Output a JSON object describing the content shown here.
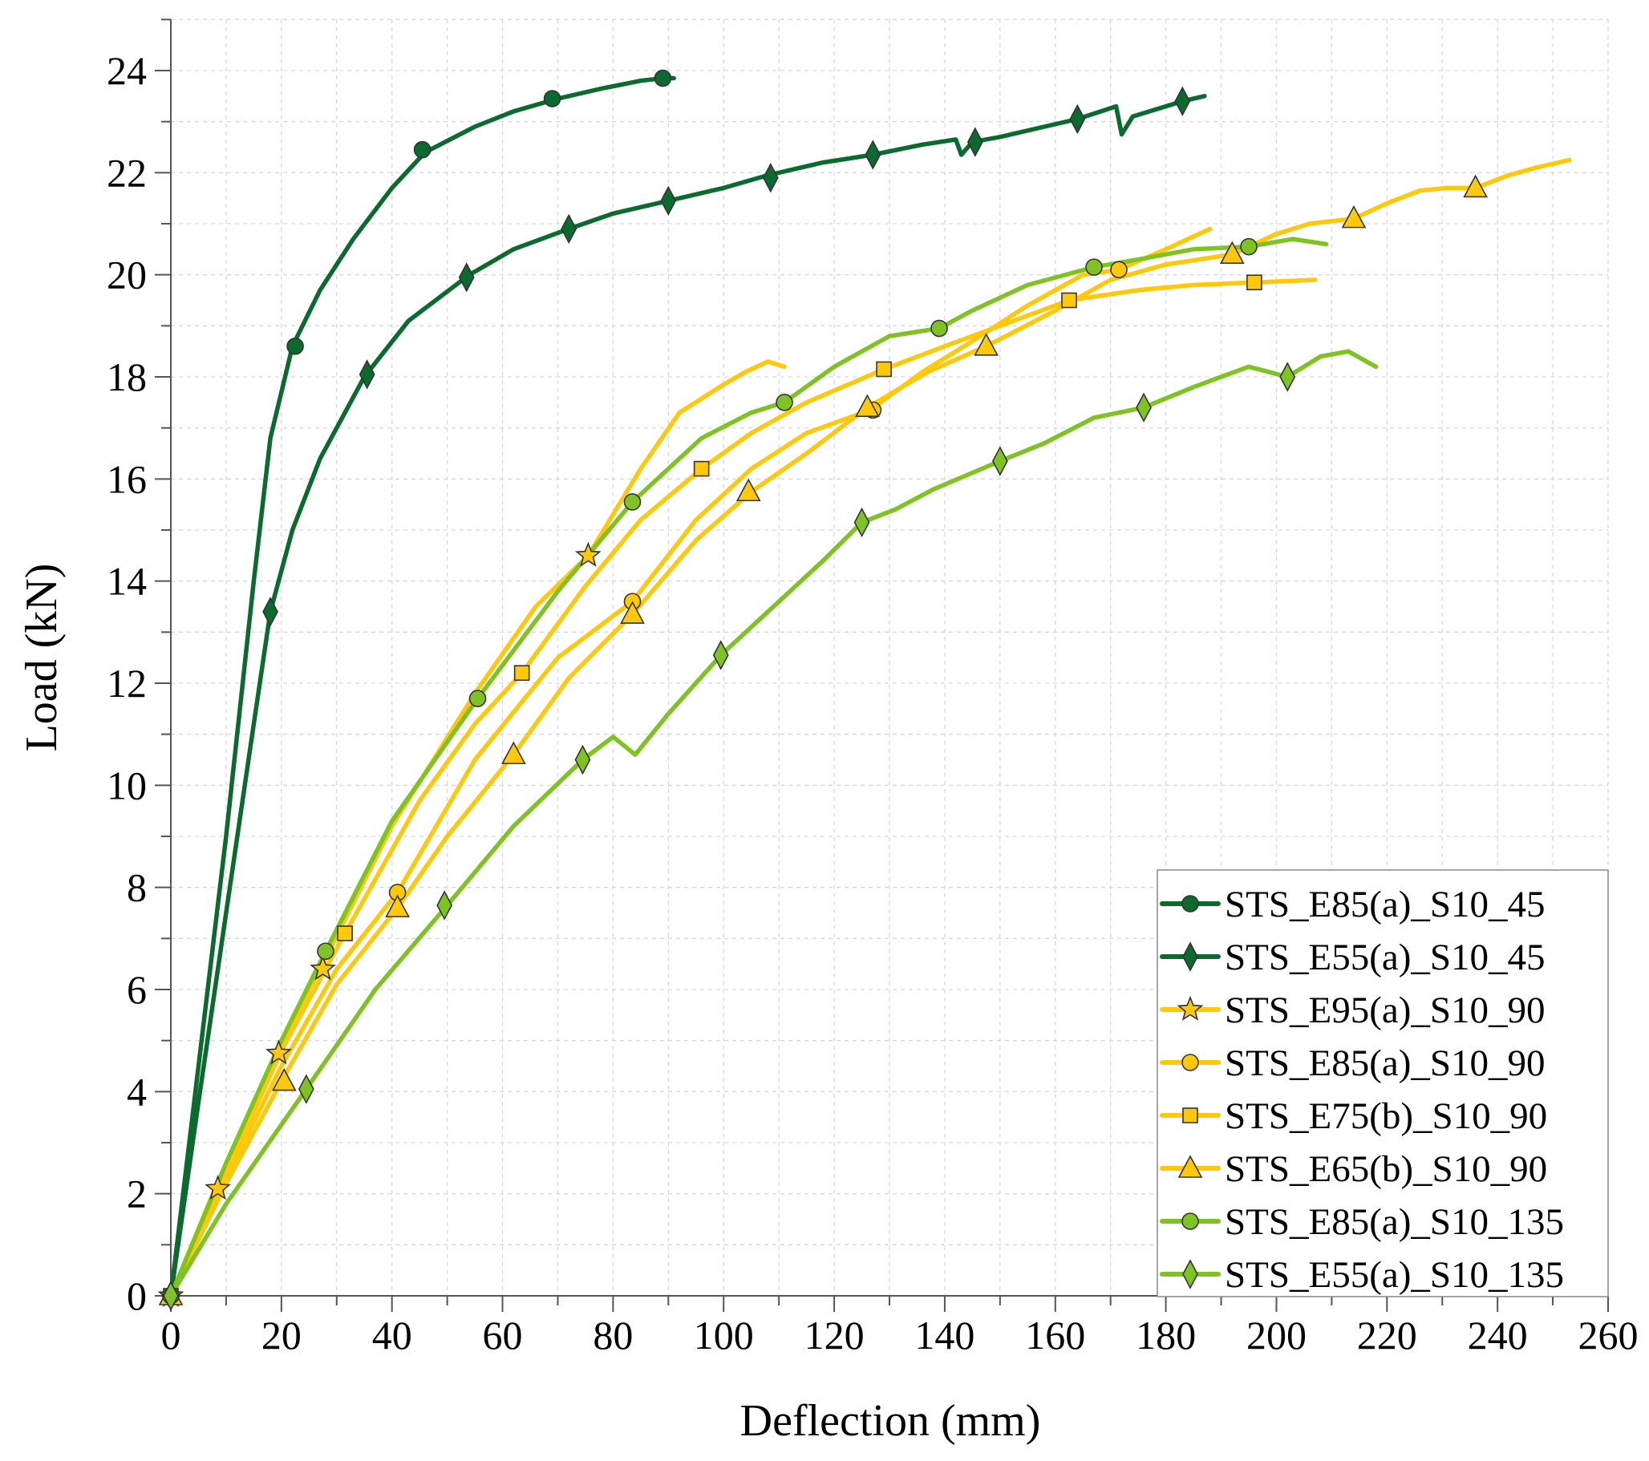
{
  "chart_data": {
    "type": "line",
    "title": "",
    "xlabel": "Deflection (mm)",
    "ylabel": "Load (kN)",
    "xlim": [
      0,
      260
    ],
    "ylim": [
      0,
      25
    ],
    "x_ticks": [
      "0",
      "20",
      "40",
      "60",
      "80",
      "100",
      "120",
      "140",
      "160",
      "180",
      "200",
      "220",
      "240",
      "260"
    ],
    "y_ticks": [
      "0",
      "2",
      "4",
      "6",
      "8",
      "10",
      "12",
      "14",
      "16",
      "18",
      "20",
      "22",
      "24"
    ],
    "grid": true,
    "legend_position": "bottom-right",
    "series": [
      {
        "name": "STS_E85(a)_S10_45",
        "color": "#0b6b2e",
        "marker": "circle",
        "points": [
          [
            0,
            0
          ],
          [
            5,
            4.5
          ],
          [
            10,
            9
          ],
          [
            15,
            14
          ],
          [
            18,
            16.8
          ],
          [
            22,
            18.6
          ],
          [
            27,
            19.7
          ],
          [
            33,
            20.7
          ],
          [
            40,
            21.7
          ],
          [
            46,
            22.4
          ],
          [
            55,
            22.9
          ],
          [
            62,
            23.2
          ],
          [
            70,
            23.45
          ],
          [
            78,
            23.65
          ],
          [
            85,
            23.8
          ],
          [
            89,
            23.85
          ],
          [
            91,
            23.85
          ]
        ],
        "markers": [
          [
            0,
            0
          ],
          [
            22.5,
            18.6
          ],
          [
            45.5,
            22.45
          ],
          [
            69,
            23.45
          ],
          [
            89,
            23.85
          ]
        ]
      },
      {
        "name": "STS_E55(a)_S10_45",
        "color": "#0b6b2e",
        "marker": "diamond",
        "points": [
          [
            0,
            0
          ],
          [
            5,
            3.8
          ],
          [
            10,
            7.5
          ],
          [
            15,
            11.2
          ],
          [
            18,
            13.4
          ],
          [
            22,
            15
          ],
          [
            27,
            16.4
          ],
          [
            35,
            18
          ],
          [
            43,
            19.1
          ],
          [
            54,
            20
          ],
          [
            62,
            20.5
          ],
          [
            72,
            20.9
          ],
          [
            80,
            21.2
          ],
          [
            90,
            21.45
          ],
          [
            100,
            21.7
          ],
          [
            108,
            21.95
          ],
          [
            118,
            22.2
          ],
          [
            127,
            22.35
          ],
          [
            136,
            22.55
          ],
          [
            142,
            22.65
          ],
          [
            143,
            22.35
          ],
          [
            145,
            22.6
          ],
          [
            150,
            22.7
          ],
          [
            158,
            22.9
          ],
          [
            164,
            23.05
          ],
          [
            171,
            23.3
          ],
          [
            172,
            22.75
          ],
          [
            174,
            23.1
          ],
          [
            180,
            23.3
          ],
          [
            183,
            23.4
          ],
          [
            187,
            23.5
          ]
        ],
        "markers": [
          [
            0,
            0
          ],
          [
            18,
            13.4
          ],
          [
            35.5,
            18.05
          ],
          [
            53.5,
            19.95
          ],
          [
            72,
            20.9
          ],
          [
            90,
            21.45
          ],
          [
            108.5,
            21.9
          ],
          [
            127,
            22.35
          ],
          [
            145.5,
            22.6
          ],
          [
            164,
            23.05
          ],
          [
            183,
            23.4
          ]
        ]
      },
      {
        "name": "STS_E95(a)_S10_90",
        "color": "#ffc90a",
        "marker": "star",
        "points": [
          [
            0,
            0
          ],
          [
            8,
            2.1
          ],
          [
            19,
            4.75
          ],
          [
            27,
            6.4
          ],
          [
            40,
            9.2
          ],
          [
            55,
            11.8
          ],
          [
            66,
            13.5
          ],
          [
            75.5,
            14.5
          ],
          [
            85,
            16.2
          ],
          [
            92,
            17.3
          ],
          [
            100,
            17.85
          ],
          [
            104,
            18.1
          ],
          [
            108,
            18.3
          ],
          [
            111,
            18.2
          ]
        ],
        "markers": [
          [
            0,
            0
          ],
          [
            8.5,
            2.1
          ],
          [
            19.5,
            4.75
          ],
          [
            27.5,
            6.4
          ],
          [
            75.5,
            14.5
          ]
        ]
      },
      {
        "name": "STS_E85(a)_S10_90",
        "color": "#ffc90a",
        "marker": "circle",
        "points": [
          [
            0,
            0
          ],
          [
            10,
            2.3
          ],
          [
            20,
            4.5
          ],
          [
            30,
            6.4
          ],
          [
            41,
            7.9
          ],
          [
            55,
            10.5
          ],
          [
            70,
            12.5
          ],
          [
            83.5,
            13.6
          ],
          [
            95,
            15.2
          ],
          [
            105,
            16.2
          ],
          [
            115,
            16.9
          ],
          [
            126.5,
            17.35
          ],
          [
            136,
            18.1
          ],
          [
            145,
            18.7
          ],
          [
            155,
            19.4
          ],
          [
            165,
            20
          ],
          [
            171.5,
            20.1
          ],
          [
            180,
            20.5
          ],
          [
            188,
            20.9
          ]
        ],
        "markers": [
          [
            0,
            0
          ],
          [
            41,
            7.9
          ],
          [
            83.5,
            13.6
          ],
          [
            127,
            17.35
          ],
          [
            171.5,
            20.1
          ]
        ]
      },
      {
        "name": "STS_E75(b)_S10_90",
        "color": "#ffc90a",
        "marker": "square",
        "points": [
          [
            0,
            0
          ],
          [
            10,
            2.4
          ],
          [
            20,
            4.8
          ],
          [
            31.5,
            7.1
          ],
          [
            45,
            9.7
          ],
          [
            55,
            11.2
          ],
          [
            63.5,
            12.2
          ],
          [
            75,
            13.9
          ],
          [
            85,
            15.2
          ],
          [
            96,
            16.2
          ],
          [
            105,
            16.9
          ],
          [
            115,
            17.5
          ],
          [
            129,
            18.15
          ],
          [
            140,
            18.6
          ],
          [
            150,
            19
          ],
          [
            162.5,
            19.5
          ],
          [
            175,
            19.7
          ],
          [
            185,
            19.8
          ],
          [
            196,
            19.85
          ],
          [
            207,
            19.9
          ]
        ],
        "markers": [
          [
            0,
            0
          ],
          [
            31.5,
            7.1
          ],
          [
            63.5,
            12.2
          ],
          [
            96,
            16.2
          ],
          [
            129,
            18.15
          ],
          [
            162.5,
            19.5
          ],
          [
            196,
            19.85
          ]
        ]
      },
      {
        "name": "STS_E65(b)_S10_90",
        "color": "#ffc90a",
        "marker": "triangle",
        "points": [
          [
            0,
            0
          ],
          [
            10,
            2.2
          ],
          [
            20,
            4.2
          ],
          [
            30,
            6.1
          ],
          [
            41,
            7.6
          ],
          [
            50,
            9
          ],
          [
            62,
            10.6
          ],
          [
            72,
            12.1
          ],
          [
            83.5,
            13.35
          ],
          [
            95,
            14.8
          ],
          [
            105,
            15.75
          ],
          [
            115,
            16.5
          ],
          [
            126,
            17.4
          ],
          [
            137,
            18.1
          ],
          [
            147.5,
            18.6
          ],
          [
            160,
            19.3
          ],
          [
            170,
            19.9
          ],
          [
            180,
            20.2
          ],
          [
            192,
            20.4
          ],
          [
            200,
            20.8
          ],
          [
            206,
            21
          ],
          [
            214,
            21.1
          ],
          [
            220,
            21.4
          ],
          [
            226,
            21.65
          ],
          [
            231,
            21.7
          ],
          [
            236,
            21.7
          ],
          [
            242,
            21.95
          ],
          [
            247,
            22.1
          ],
          [
            253,
            22.25
          ]
        ],
        "markers": [
          [
            0,
            0
          ],
          [
            20.5,
            4.2
          ],
          [
            41,
            7.6
          ],
          [
            62,
            10.6
          ],
          [
            83.5,
            13.35
          ],
          [
            104.5,
            15.75
          ],
          [
            126,
            17.4
          ],
          [
            147.5,
            18.6
          ],
          [
            192,
            20.4
          ],
          [
            214,
            21.1
          ],
          [
            236,
            21.7
          ]
        ]
      },
      {
        "name": "STS_E85(a)_S10_135",
        "color": "#7ec322",
        "marker": "circle",
        "points": [
          [
            0,
            0
          ],
          [
            10,
            2.6
          ],
          [
            20,
            5
          ],
          [
            28,
            6.75
          ],
          [
            40,
            9.3
          ],
          [
            55.5,
            11.7
          ],
          [
            70,
            13.8
          ],
          [
            83.5,
            15.55
          ],
          [
            96,
            16.8
          ],
          [
            105,
            17.3
          ],
          [
            111,
            17.5
          ],
          [
            120,
            18.2
          ],
          [
            130,
            18.8
          ],
          [
            139,
            18.95
          ],
          [
            145,
            19.3
          ],
          [
            155,
            19.8
          ],
          [
            167,
            20.15
          ],
          [
            175,
            20.3
          ],
          [
            185,
            20.5
          ],
          [
            195,
            20.55
          ],
          [
            203,
            20.7
          ],
          [
            209,
            20.6
          ]
        ],
        "markers": [
          [
            0,
            0
          ],
          [
            28,
            6.75
          ],
          [
            55.5,
            11.7
          ],
          [
            83.5,
            15.55
          ],
          [
            111,
            17.5
          ],
          [
            139,
            18.95
          ],
          [
            167,
            20.15
          ],
          [
            195,
            20.55
          ]
        ]
      },
      {
        "name": "STS_E55(a)_S10_135",
        "color": "#7ec322",
        "marker": "diamond",
        "points": [
          [
            0,
            0
          ],
          [
            10,
            1.8
          ],
          [
            24.5,
            4.05
          ],
          [
            37,
            6
          ],
          [
            50,
            7.65
          ],
          [
            62,
            9.2
          ],
          [
            74.5,
            10.5
          ],
          [
            80,
            10.95
          ],
          [
            84,
            10.6
          ],
          [
            90,
            11.4
          ],
          [
            99.5,
            12.55
          ],
          [
            110,
            13.6
          ],
          [
            118,
            14.4
          ],
          [
            125,
            15.15
          ],
          [
            131,
            15.4
          ],
          [
            138,
            15.8
          ],
          [
            150,
            16.35
          ],
          [
            158,
            16.7
          ],
          [
            167,
            17.2
          ],
          [
            176,
            17.4
          ],
          [
            185,
            17.8
          ],
          [
            195,
            18.2
          ],
          [
            202,
            18
          ],
          [
            208,
            18.4
          ],
          [
            213,
            18.5
          ],
          [
            218,
            18.2
          ]
        ],
        "markers": [
          [
            0,
            0
          ],
          [
            24.5,
            4.05
          ],
          [
            49.5,
            7.65
          ],
          [
            74.5,
            10.5
          ],
          [
            99.5,
            12.55
          ],
          [
            125,
            15.15
          ],
          [
            150,
            16.35
          ],
          [
            176,
            17.4
          ],
          [
            202,
            18
          ]
        ]
      }
    ]
  }
}
